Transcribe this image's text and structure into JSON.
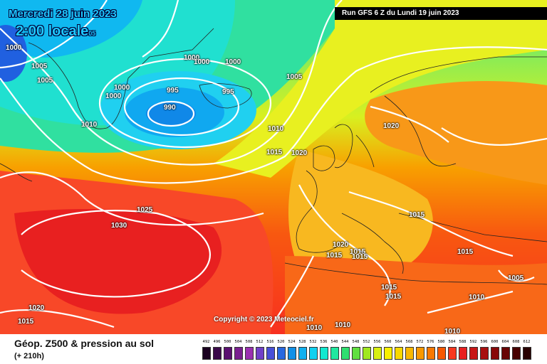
{
  "header": {
    "date": "Mercredi 28 juin 2023",
    "time": "2:00 locale",
    "time_suffix": "05",
    "run": "Run GFS 6 Z du Lundi 19 juin 2023"
  },
  "copyright": "Copyright © 2023 Meteociel.fr",
  "footer": {
    "title": "Géop. Z500 & pression au sol",
    "lead": "(+ 210h)"
  },
  "scale": {
    "ticks": [
      "492",
      "496",
      "500",
      "504",
      "508",
      "512",
      "516",
      "520",
      "524",
      "528",
      "532",
      "536",
      "540",
      "544",
      "548",
      "552",
      "556",
      "560",
      "564",
      "568",
      "572",
      "576",
      "580",
      "584",
      "588",
      "592",
      "596",
      "600",
      "604",
      "608",
      "612"
    ],
    "colors": [
      "#1a0020",
      "#3a0a4a",
      "#5a1070",
      "#7a2090",
      "#9a30b0",
      "#7040c8",
      "#4850d8",
      "#2868e0",
      "#1090e8",
      "#10b0f0",
      "#10d0f0",
      "#10e8d0",
      "#20e8a0",
      "#30e070",
      "#60e040",
      "#a0e820",
      "#d8f010",
      "#f8f000",
      "#f8d800",
      "#f8b800",
      "#f89800",
      "#f87800",
      "#f85800",
      "#f83820",
      "#e82020",
      "#c81818",
      "#a81010",
      "#880808",
      "#680404",
      "#480000",
      "#280000"
    ]
  },
  "isobars": [
    {
      "value": "1000"
    },
    {
      "value": "1005"
    },
    {
      "value": "1005"
    },
    {
      "value": "1000"
    },
    {
      "value": "1000"
    },
    {
      "value": "1000"
    },
    {
      "value": "1000"
    },
    {
      "value": "1000"
    },
    {
      "value": "995"
    },
    {
      "value": "995"
    },
    {
      "value": "990"
    },
    {
      "value": "1005"
    },
    {
      "value": "1010"
    },
    {
      "value": "1010"
    },
    {
      "value": "1015"
    },
    {
      "value": "1020"
    },
    {
      "value": "1020"
    },
    {
      "value": "1025"
    },
    {
      "value": "1030"
    },
    {
      "value": "1015"
    },
    {
      "value": "1020"
    },
    {
      "value": "1015"
    },
    {
      "value": "1015"
    },
    {
      "value": "1015"
    },
    {
      "value": "1015"
    },
    {
      "value": "1015"
    },
    {
      "value": "1015"
    },
    {
      "value": "1005"
    },
    {
      "value": "1010"
    },
    {
      "value": "1020"
    },
    {
      "value": "1015"
    },
    {
      "value": "1010"
    },
    {
      "value": "1010"
    },
    {
      "value": "1010"
    }
  ]
}
